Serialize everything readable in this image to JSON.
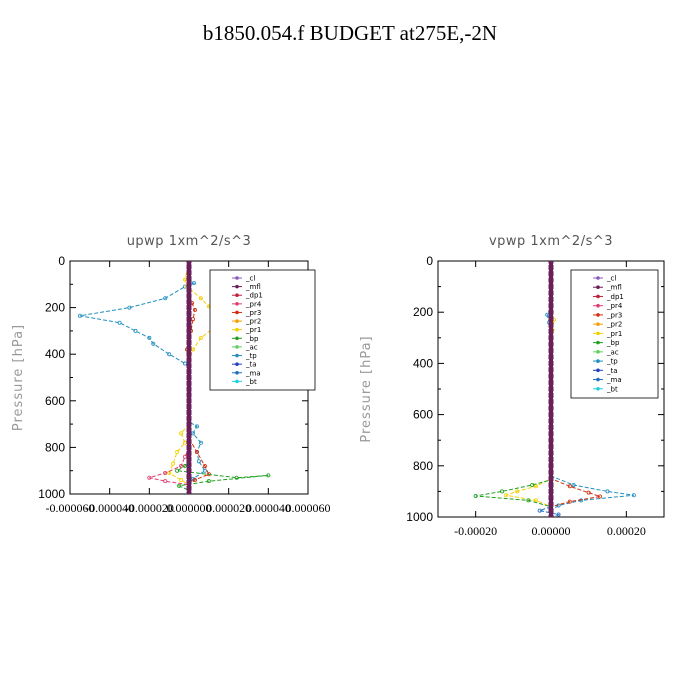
{
  "figure_title": "b1850.054.f  BUDGET at275E,-2N",
  "chart_data": [
    {
      "type": "line",
      "title": "upwp   1xm^2/s^3",
      "ylabel": "Pressure [hPa]",
      "ylim": [
        1000,
        0
      ],
      "xlim": [
        -6e-05,
        6e-05
      ],
      "yticks": [
        0,
        200,
        400,
        600,
        800,
        1000
      ],
      "xticks": [
        -6e-05,
        -4e-05,
        -2e-05,
        0.0,
        2e-05,
        4e-05,
        6e-05
      ],
      "xtick_labels": [
        "-0.000060",
        "-0.000040",
        "-0.000020",
        "0.000000",
        "0.000020",
        "0.000040",
        "0.000060"
      ],
      "legend": [
        "_cl",
        "_mfl",
        "_dp1",
        "_pr4",
        "_pr3",
        "_pr2",
        "_pr1",
        "_bp",
        "_ac",
        "_tp",
        "_ta",
        "_ma",
        "_bt"
      ],
      "legend_position": "top-right",
      "series": [
        {
          "name": "_tp",
          "color": "#1f8fbf",
          "points": [
            [
              0,
              0
            ],
            [
              0,
              80
            ],
            [
              2.5e-06,
              95
            ],
            [
              -2e-06,
              110
            ],
            [
              -1.2e-05,
              160
            ],
            [
              -3e-05,
              200
            ],
            [
              -5.5e-05,
              235
            ],
            [
              -3.5e-05,
              265
            ],
            [
              -2.7e-05,
              300
            ],
            [
              -2e-05,
              330
            ],
            [
              -1.8e-05,
              355
            ],
            [
              -1e-05,
              400
            ],
            [
              -2e-06,
              440
            ],
            [
              0,
              460
            ],
            [
              0,
              690
            ],
            [
              4e-06,
              710
            ],
            [
              2e-06,
              740
            ],
            [
              6e-06,
              780
            ],
            [
              4e-06,
              820
            ],
            [
              5e-06,
              860
            ],
            [
              8e-06,
              900
            ],
            [
              2e-06,
              935
            ],
            [
              0,
              960
            ],
            [
              0,
              1000
            ]
          ]
        },
        {
          "name": "_pr2",
          "color": "#f5d000",
          "points": [
            [
              0,
              0
            ],
            [
              -2e-06,
              80
            ],
            [
              -1e-06,
              110
            ],
            [
              6e-06,
              160
            ],
            [
              1e-05,
              195
            ],
            [
              1.9e-05,
              225
            ],
            [
              1.2e-05,
              250
            ],
            [
              1.2e-05,
              290
            ],
            [
              6e-06,
              330
            ],
            [
              2e-06,
              380
            ],
            [
              0,
              430
            ],
            [
              0,
              700
            ],
            [
              -4e-06,
              740
            ],
            [
              -2e-06,
              780
            ],
            [
              -6e-06,
              820
            ],
            [
              -8e-06,
              870
            ],
            [
              -1e-05,
              910
            ],
            [
              -4e-06,
              940
            ],
            [
              0,
              960
            ],
            [
              0,
              1000
            ]
          ]
        },
        {
          "name": "_pr3",
          "color": "#d03010",
          "points": [
            [
              0,
              0
            ],
            [
              0,
              140
            ],
            [
              1.5e-06,
              180
            ],
            [
              3e-06,
              210
            ],
            [
              2e-06,
              250
            ],
            [
              1e-06,
              300
            ],
            [
              -1e-06,
              380
            ],
            [
              0,
              430
            ],
            [
              0,
              760
            ],
            [
              4e-06,
              820
            ],
            [
              8e-06,
              880
            ],
            [
              1e-05,
              915
            ],
            [
              3e-06,
              940
            ],
            [
              0,
              960
            ],
            [
              0,
              1000
            ]
          ]
        },
        {
          "name": "_pr4",
          "color": "#e04070",
          "points": [
            [
              0,
              0
            ],
            [
              0,
              800
            ],
            [
              -2e-06,
              840
            ],
            [
              -4e-06,
              880
            ],
            [
              -1.2e-05,
              910
            ],
            [
              -2e-05,
              930
            ],
            [
              -1.2e-05,
              945
            ],
            [
              0,
              960
            ],
            [
              0,
              1000
            ]
          ]
        },
        {
          "name": "_bp",
          "color": "#20a020",
          "points": [
            [
              0,
              0
            ],
            [
              0,
              840
            ],
            [
              -2e-06,
              880
            ],
            [
              -6e-06,
              900
            ],
            [
              2.4e-05,
              930
            ],
            [
              4e-05,
              920
            ],
            [
              1e-05,
              945
            ],
            [
              -5e-06,
              965
            ],
            [
              0,
              985
            ],
            [
              0,
              1000
            ]
          ]
        },
        {
          "name": "_mfl",
          "color": "#6a1f5a",
          "points": [
            [
              0,
              0
            ],
            [
              0,
              1000
            ]
          ]
        }
      ]
    },
    {
      "type": "line",
      "title": "vpwp   1xm^2/s^3",
      "ylabel": "Pressure [hPa]",
      "ylim": [
        1000,
        0
      ],
      "xlim": [
        -0.0003,
        0.0003
      ],
      "yticks": [
        0,
        200,
        400,
        600,
        800,
        1000
      ],
      "xticks": [
        -0.0002,
        0.0,
        0.0002
      ],
      "xtick_labels": [
        "-0.00020",
        "0.00000",
        "0.00020"
      ],
      "legend": [
        "_cl",
        "_mfl",
        "_dp1",
        "_pr4",
        "_pr3",
        "_pr2",
        "_pr1",
        "_bp",
        "_ac",
        "_tp",
        "_ta",
        "_ma",
        "_bt"
      ],
      "legend_position": "top-right",
      "series": [
        {
          "name": "_tp",
          "color": "#1f8fbf",
          "points": [
            [
              0,
              0
            ],
            [
              0,
              180
            ],
            [
              -1e-05,
              210
            ],
            [
              -5e-06,
              240
            ],
            [
              0,
              270
            ],
            [
              0,
              840
            ],
            [
              6e-05,
              875
            ],
            [
              0.00015,
              900
            ],
            [
              0.00022,
              915
            ],
            [
              8e-05,
              935
            ],
            [
              2e-05,
              955
            ],
            [
              0,
              975
            ],
            [
              0,
              1000
            ]
          ]
        },
        {
          "name": "_pr2",
          "color": "#f5d000",
          "points": [
            [
              0,
              0
            ],
            [
              0,
              200
            ],
            [
              8e-06,
              230
            ],
            [
              4e-06,
              270
            ],
            [
              0,
              310
            ],
            [
              0,
              850
            ],
            [
              -4e-05,
              880
            ],
            [
              -9e-05,
              900
            ],
            [
              -0.00012,
              915
            ],
            [
              -4e-05,
              935
            ],
            [
              0,
              960
            ],
            [
              0,
              1000
            ]
          ]
        },
        {
          "name": "_pr3",
          "color": "#d03010",
          "points": [
            [
              0,
              0
            ],
            [
              0,
              850
            ],
            [
              5e-05,
              880
            ],
            [
              0.0001,
              905
            ],
            [
              0.00013,
              920
            ],
            [
              5e-05,
              940
            ],
            [
              0,
              960
            ],
            [
              0,
              1000
            ]
          ]
        },
        {
          "name": "_bp",
          "color": "#20a020",
          "points": [
            [
              0,
              0
            ],
            [
              0,
              855
            ],
            [
              -5e-05,
              875
            ],
            [
              -0.00013,
              900
            ],
            [
              -0.0002,
              918
            ],
            [
              -6e-05,
              935
            ],
            [
              0,
              960
            ],
            [
              0,
              1000
            ]
          ]
        },
        {
          "name": "_ma",
          "color": "#1f6fbf",
          "points": [
            [
              0,
              0
            ],
            [
              0,
              960
            ],
            [
              -3e-05,
              975
            ],
            [
              2e-05,
              990
            ],
            [
              0,
              1000
            ]
          ]
        },
        {
          "name": "_mfl",
          "color": "#6a1f5a",
          "points": [
            [
              0,
              0
            ],
            [
              0,
              1000
            ]
          ]
        }
      ]
    }
  ]
}
